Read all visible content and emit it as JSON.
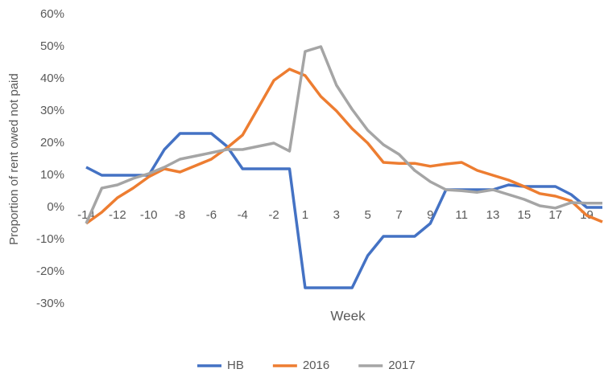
{
  "chart_data": {
    "type": "line",
    "y_label": "Proportion of rent owed not paid",
    "x_label": "Week",
    "categories": [
      "-14",
      null,
      "-12",
      null,
      "-10",
      null,
      "-8",
      null,
      "-6",
      null,
      "-4",
      null,
      "-2",
      null,
      "1",
      null,
      "3",
      null,
      "5",
      null,
      "7",
      null,
      "9",
      null,
      "11",
      null,
      "13",
      null,
      "15",
      null,
      "17",
      null,
      "19",
      null
    ],
    "series": [
      {
        "name": "HB",
        "color": "#4472c4",
        "values": [
          12.5,
          10,
          10,
          10,
          10,
          18,
          23,
          23,
          23,
          19,
          12,
          12,
          12,
          12,
          -25,
          -25,
          -25,
          -25,
          -15,
          -9,
          -9,
          -9,
          -5,
          5.5,
          5.5,
          5.5,
          5.5,
          7,
          6.5,
          6.5,
          6.5,
          4,
          0,
          0
        ]
      },
      {
        "name": "2016",
        "color": "#ed7d31",
        "values": [
          -5,
          -1.5,
          3,
          6,
          9.5,
          12,
          11,
          13,
          15,
          18.5,
          22.5,
          31,
          39.5,
          43,
          41,
          34.5,
          30,
          24.5,
          20,
          14,
          13.7,
          13.7,
          12.8,
          13.5,
          14,
          11.5,
          10,
          8.5,
          6.5,
          4.3,
          3.5,
          2,
          -2.5,
          -4.5
        ]
      },
      {
        "name": "2017",
        "color": "#a5a5a5",
        "values": [
          -5,
          6,
          7,
          9,
          10.5,
          12.5,
          15,
          16,
          17,
          18,
          18,
          19,
          20,
          17.5,
          48.5,
          50,
          38,
          30.5,
          24,
          19.5,
          16.5,
          11.5,
          8,
          5.5,
          5.2,
          4.7,
          5.5,
          4,
          2.5,
          0.5,
          -0.2,
          1.5,
          1.3,
          1.3
        ]
      }
    ],
    "ylim": [
      -30,
      60
    ],
    "yticks": [
      {
        "value": -30,
        "label": "-30%"
      },
      {
        "value": -20,
        "label": "-20%"
      },
      {
        "value": -10,
        "label": "-10%"
      },
      {
        "value": 0,
        "label": "0%"
      },
      {
        "value": 10,
        "label": "10%"
      },
      {
        "value": 20,
        "label": "20%"
      },
      {
        "value": 30,
        "label": "30%"
      },
      {
        "value": 40,
        "label": "40%"
      },
      {
        "value": 50,
        "label": "50%"
      },
      {
        "value": 60,
        "label": "60%"
      }
    ],
    "grid": false,
    "legend": "bottom"
  }
}
